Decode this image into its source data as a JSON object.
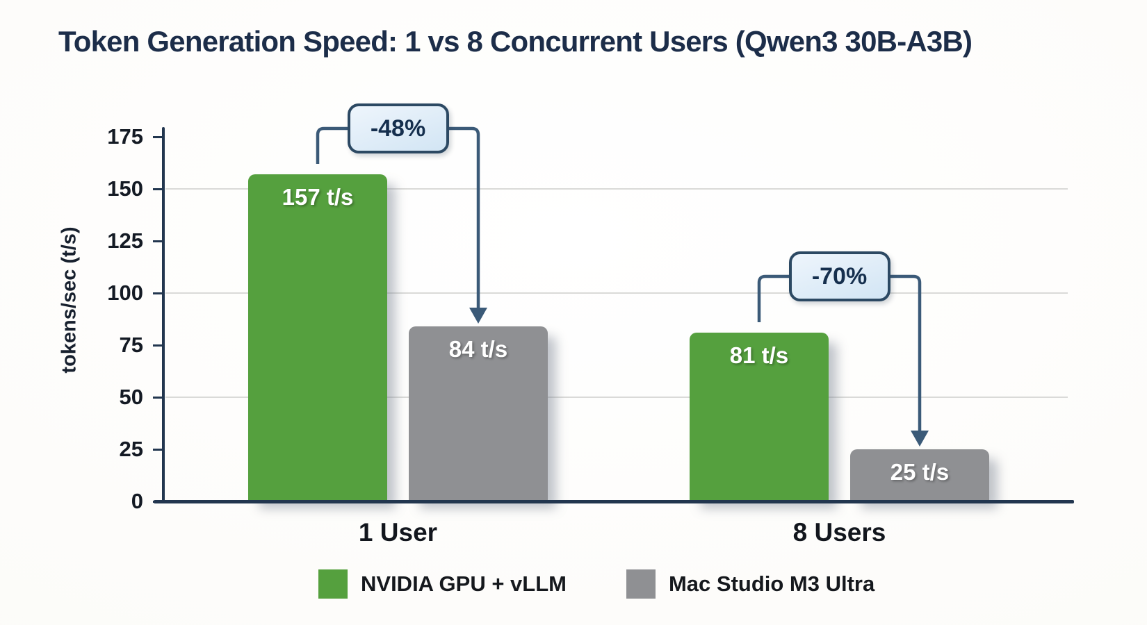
{
  "chart_data": {
    "type": "bar",
    "title": "Token Generation Speed: 1 vs 8 Concurrent Users (Qwen3 30B-A3B)",
    "categories": [
      "1 User",
      "8 Users"
    ],
    "series": [
      {
        "name": "NVIDIA GPU + vLLM",
        "color": "#55a03e",
        "values": [
          157,
          81
        ],
        "labels": [
          "157 t/s",
          "81 t/s"
        ]
      },
      {
        "name": "Mac Studio M3 Ultra",
        "color": "#8f9093",
        "values": [
          84,
          25
        ],
        "labels": [
          "84 t/s",
          "25 t/s"
        ]
      }
    ],
    "xlabel": "",
    "ylabel": "tokens/sec (t/s)",
    "ylim": [
      0,
      175
    ],
    "yticks": [
      0,
      25,
      50,
      75,
      100,
      125,
      150,
      175
    ],
    "gridlines": [
      50,
      100,
      150
    ],
    "grid": "horizontal",
    "legend_position": "bottom",
    "annotations": [
      {
        "label": "-48%",
        "group": 0,
        "from_series": 0,
        "to_series": 1
      },
      {
        "label": "-70%",
        "group": 1,
        "from_series": 0,
        "to_series": 1
      }
    ],
    "colors": {
      "title_text": "#1c2d49",
      "axis": "#22364f",
      "grid": "#dadad8",
      "connector": "#3b5a78",
      "annotation_fill": "#d9e8f6",
      "annotation_border": "#2c4963",
      "annotation_text": "#152f4e",
      "bar_label_text": "#ffffff"
    }
  }
}
